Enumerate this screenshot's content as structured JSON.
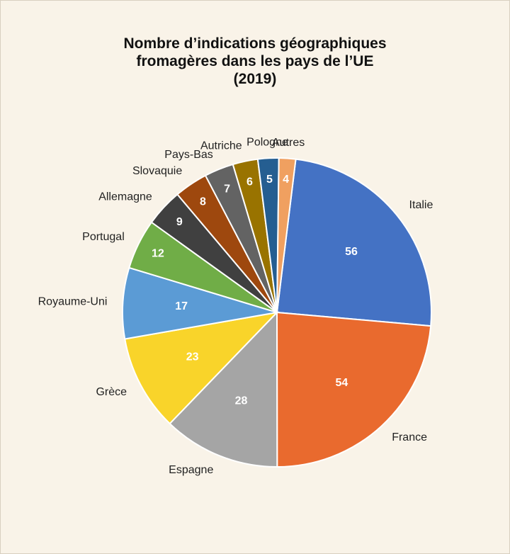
{
  "chart_data": {
    "type": "pie",
    "title": "Nombre d’indications géographiques fromagères dans les pays de l’UE (2019)",
    "categories": [
      "Italie",
      "France",
      "Espagne",
      "Grèce",
      "Royaume-Uni",
      "Portugal",
      "Allemagne",
      "Slovaquie",
      "Pays-Bas",
      "Autriche",
      "Pologne",
      "Autres"
    ],
    "values": [
      56,
      54,
      28,
      23,
      17,
      12,
      9,
      8,
      7,
      6,
      5,
      4
    ],
    "colors": [
      "#4472c4",
      "#e96a2e",
      "#a5a5a5",
      "#f9d42a",
      "#5b9bd5",
      "#70ad47",
      "#404040",
      "#9e480e",
      "#636363",
      "#997300",
      "#255e91",
      "#f0a060"
    ]
  }
}
